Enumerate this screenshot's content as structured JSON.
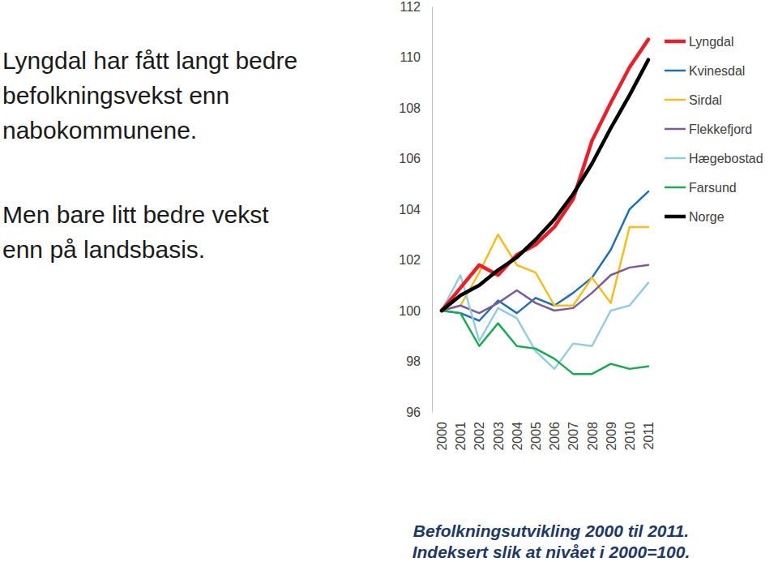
{
  "chart_data": {
    "type": "line",
    "title": "Befolkningsutvikling 2000 til 2011.",
    "subtitle": "Indeksert slik at nivået i 2000=100.",
    "annotations": [
      [
        "Lyngdal har fått langt bedre",
        "befolkningsvekst enn",
        "nabokommunene."
      ],
      [
        "Men bare litt bedre vekst",
        "enn på landsbasis."
      ]
    ],
    "categories": [
      "2000",
      "2001",
      "2002",
      "2003",
      "2004",
      "2005",
      "2006",
      "2007",
      "2008",
      "2009",
      "2010",
      "2011"
    ],
    "series": [
      {
        "name": "Lyngdal",
        "color": "#e8202a",
        "values": [
          100,
          100.9,
          101.8,
          101.4,
          102.2,
          102.6,
          103.3,
          104.4,
          106.7,
          108.2,
          109.6,
          110.7
        ]
      },
      {
        "name": "Kvinesdal",
        "color": "#1f6fb4",
        "values": [
          100,
          99.9,
          99.6,
          100.4,
          99.9,
          100.5,
          100.2,
          100.7,
          101.3,
          102.4,
          104.0,
          104.7
        ]
      },
      {
        "name": "Sirdal",
        "color": "#f5bd1f",
        "values": [
          100,
          100.2,
          101.5,
          103.0,
          101.8,
          101.5,
          100.2,
          100.2,
          101.3,
          100.3,
          103.3,
          103.3
        ]
      },
      {
        "name": "Flekkefjord",
        "color": "#7b5c99",
        "values": [
          100,
          100.2,
          99.9,
          100.3,
          100.8,
          100.3,
          100.0,
          100.1,
          100.7,
          101.4,
          101.7,
          101.8
        ]
      },
      {
        "name": "Hægebostad",
        "color": "#93cddd",
        "values": [
          100,
          101.4,
          98.8,
          100.1,
          99.7,
          98.4,
          97.7,
          98.7,
          98.6,
          100.0,
          100.2,
          101.1
        ]
      },
      {
        "name": "Farsund",
        "color": "#1aaa55",
        "values": [
          100,
          99.9,
          98.6,
          99.5,
          98.6,
          98.5,
          98.1,
          97.5,
          97.5,
          97.9,
          97.7,
          97.8
        ]
      },
      {
        "name": "Norge",
        "color": "#000000",
        "values": [
          100,
          100.6,
          101.0,
          101.6,
          102.1,
          102.8,
          103.6,
          104.6,
          105.8,
          107.2,
          108.5,
          109.9
        ]
      }
    ],
    "ylim": [
      96,
      112
    ],
    "yticks": [
      96,
      98,
      100,
      102,
      104,
      106,
      108,
      110,
      112
    ],
    "grid": false,
    "legend": "right"
  }
}
